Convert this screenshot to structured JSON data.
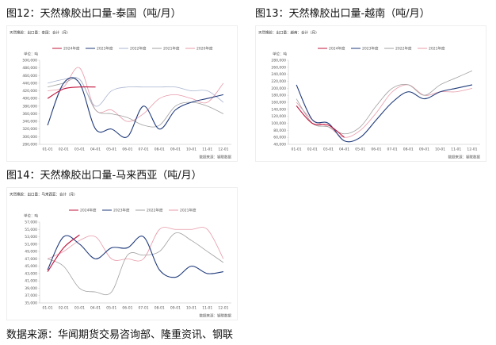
{
  "chart_data": [
    {
      "type": "line",
      "title": "图12：天然橡胶出口量-泰国（吨/月）",
      "note": "天然橡胶：出口量：泰国：合计（月）",
      "unit": "单位：吨",
      "source": "数据来源：钢联数据",
      "categories": [
        "01-01",
        "02-01",
        "03-01",
        "04-01",
        "05-01",
        "06-01",
        "07-01",
        "08-01",
        "09-01",
        "10-01",
        "11-01",
        "12-01"
      ],
      "ylim": [
        280000,
        500000
      ],
      "yticks": [
        {
          "value": 280000,
          "label": "280,000"
        },
        {
          "value": 300000,
          "label": "300,000"
        },
        {
          "value": 320000,
          "label": "320,000"
        },
        {
          "value": 340000,
          "label": "340,000"
        },
        {
          "value": 360000,
          "label": "360,000"
        },
        {
          "value": 380000,
          "label": "380,000"
        },
        {
          "value": 400000,
          "label": "400,000"
        },
        {
          "value": 420000,
          "label": "420,000"
        },
        {
          "value": 440000,
          "label": "440,000"
        },
        {
          "value": 460000,
          "label": "460,000"
        },
        {
          "value": 480000,
          "label": "480,000"
        },
        {
          "value": 500000,
          "label": "500,000"
        }
      ],
      "grid": false,
      "series": [
        {
          "name": "2024年度",
          "color": "#c0143c",
          "values": [
            400000,
            425000,
            430000,
            430000,
            null,
            null,
            null,
            null,
            null,
            null,
            null,
            null
          ]
        },
        {
          "name": "2023年度",
          "color": "#1f3a7a",
          "values": [
            330000,
            440000,
            440000,
            320000,
            320000,
            300000,
            380000,
            320000,
            370000,
            390000,
            400000,
            410000
          ]
        },
        {
          "name": "2022年度",
          "color": "#a9b4cf",
          "values": [
            440000,
            450000,
            450000,
            380000,
            420000,
            430000,
            430000,
            430000,
            430000,
            420000,
            420000,
            390000
          ]
        },
        {
          "name": "2021年度",
          "color": "#a0a0a0",
          "values": [
            430000,
            440000,
            450000,
            370000,
            360000,
            350000,
            330000,
            330000,
            380000,
            390000,
            380000,
            360000
          ]
        },
        {
          "name": "2020年度",
          "color": "#e89aaa",
          "values": [
            420000,
            430000,
            480000,
            370000,
            370000,
            340000,
            360000,
            400000,
            410000,
            400000,
            390000,
            440000
          ]
        }
      ]
    },
    {
      "type": "line",
      "title": "图13：天然橡胶出口量-越南（吨/月）",
      "note": "天然橡胶：出口量：越南：合计（月）",
      "unit": "单位：吨",
      "source": "数据来源：钢联数据",
      "categories": [
        "01-01",
        "02-01",
        "03-01",
        "04-01",
        "05-01",
        "06-01",
        "07-01",
        "08-01",
        "09-01",
        "10-01",
        "11-01",
        "12-01"
      ],
      "ylim": [
        40000,
        280000
      ],
      "yticks": [
        {
          "value": 40000,
          "label": "40,000"
        },
        {
          "value": 60000,
          "label": "60,000"
        },
        {
          "value": 80000,
          "label": "80,000"
        },
        {
          "value": 100000,
          "label": "100,000"
        },
        {
          "value": 120000,
          "label": "120,000"
        },
        {
          "value": 140000,
          "label": "140,000"
        },
        {
          "value": 160000,
          "label": "160,000"
        },
        {
          "value": 180000,
          "label": "180,000"
        },
        {
          "value": 200000,
          "label": "200,000"
        },
        {
          "value": 220000,
          "label": "220,000"
        },
        {
          "value": 240000,
          "label": "240,000"
        },
        {
          "value": 260000,
          "label": "260,000"
        },
        {
          "value": 280000,
          "label": "280,000"
        }
      ],
      "grid": false,
      "series": [
        {
          "name": "2024年度",
          "color": "#c0143c",
          "values": [
            150000,
            100000,
            95000,
            60000,
            null,
            null,
            null,
            null,
            null,
            null,
            null,
            null
          ]
        },
        {
          "name": "2023年度",
          "color": "#1f3a7a",
          "values": [
            210000,
            110000,
            100000,
            50000,
            60000,
            110000,
            160000,
            190000,
            170000,
            190000,
            200000,
            210000
          ]
        },
        {
          "name": "2022年度",
          "color": "#a0a0a0",
          "values": [
            170000,
            100000,
            90000,
            70000,
            90000,
            150000,
            200000,
            210000,
            180000,
            210000,
            230000,
            250000
          ]
        },
        {
          "name": "2021年度",
          "color": "#e89aaa",
          "values": [
            160000,
            110000,
            90000,
            60000,
            80000,
            130000,
            190000,
            210000,
            180000,
            190000,
            190000,
            200000
          ]
        }
      ]
    },
    {
      "type": "line",
      "title": "图14：天然橡胶出口量-马来西亚（吨/月）",
      "note": "天然橡胶：出口量：马来西亚：合计（月）",
      "unit": "单位：吨",
      "source": "数据来源：钢联数据",
      "categories": [
        "01-01",
        "02-01",
        "03-01",
        "04-01",
        "05-01",
        "06-01",
        "07-01",
        "08-01",
        "09-01",
        "10-01",
        "11-01",
        "12-01"
      ],
      "ylim": [
        35000,
        57000
      ],
      "yticks": [
        {
          "value": 35000,
          "label": "35,000"
        },
        {
          "value": 37000,
          "label": "37,000"
        },
        {
          "value": 39000,
          "label": "39,000"
        },
        {
          "value": 41000,
          "label": "41,000"
        },
        {
          "value": 43000,
          "label": "43,000"
        },
        {
          "value": 45000,
          "label": "45,000"
        },
        {
          "value": 47000,
          "label": "47,000"
        },
        {
          "value": 49000,
          "label": "49,000"
        },
        {
          "value": 51000,
          "label": "51,000"
        },
        {
          "value": 53000,
          "label": "53,000"
        },
        {
          "value": 55000,
          "label": "55,000"
        },
        {
          "value": 57000,
          "label": "57,000"
        }
      ],
      "grid": false,
      "series": [
        {
          "name": "2024年度",
          "color": "#c0143c",
          "values": [
            43500,
            50000,
            53500,
            null,
            null,
            null,
            null,
            null,
            null,
            null,
            null,
            null
          ]
        },
        {
          "name": "2023年度",
          "color": "#1f3a7a",
          "values": [
            44000,
            53000,
            51000,
            47000,
            50000,
            50000,
            53000,
            44000,
            42000,
            45000,
            43000,
            43500
          ]
        },
        {
          "name": "2022年度",
          "color": "#a0a0a0",
          "values": [
            47000,
            45000,
            39000,
            38000,
            38000,
            48000,
            48000,
            49000,
            54000,
            52000,
            49000,
            46000
          ]
        },
        {
          "name": "2021年度",
          "color": "#e89aaa",
          "values": [
            47000,
            49000,
            52000,
            53000,
            47000,
            47000,
            47000,
            55000,
            55000,
            55000,
            55000,
            47000
          ]
        }
      ]
    }
  ],
  "footer": "数据来源：华闻期货交易咨询部、隆重资讯、钢联"
}
